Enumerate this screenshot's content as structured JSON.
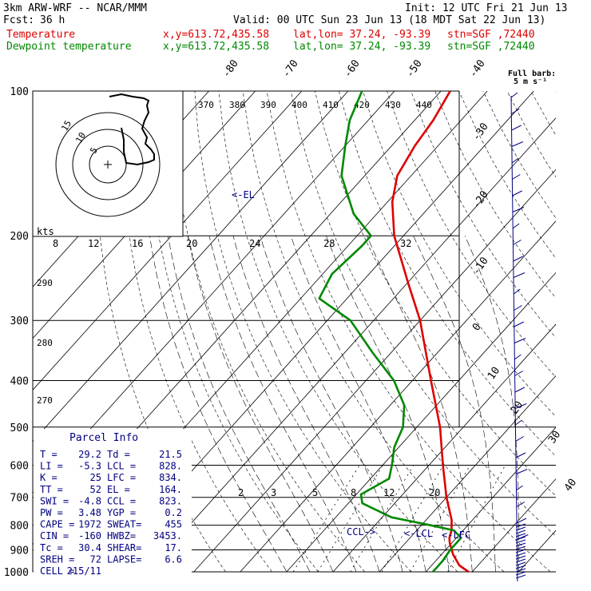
{
  "header": {
    "model": "3km ARW-WRF -- NCAR/MMM",
    "init": "Init: 12 UTC Fri 21 Jun 13",
    "fcst_label": "Fcst:",
    "fcst_value": "36 h",
    "valid": "Valid: 00 UTC Sun 23 Jun 13 (18 MDT Sat 22 Jun 13)",
    "temp_label": "Temperature",
    "dew_label": "Dewpoint temperature",
    "xy": "x,y=613.72,435.58",
    "latlon": "lat,lon= 37.24, -93.39",
    "stn": "stn=SGF ,72440",
    "barb_legend_1": "Full barb:",
    "barb_legend_2": "5 m s⁻¹"
  },
  "colors": {
    "temperature": "#dd0000",
    "dewpoint": "#008800",
    "parcel_text": "#000080",
    "wind_barb": "#000080",
    "isobar": "#000000"
  },
  "chart_data": {
    "type": "line",
    "subtype": "skew-t log-p",
    "pressure_levels": [
      100,
      200,
      300,
      400,
      500,
      600,
      700,
      800,
      900,
      1000
    ],
    "temperature_tick_labels": [
      "-80",
      "-70",
      "-60",
      "-50",
      "-40",
      "-30",
      "-20",
      "-10",
      "0",
      "10",
      "20",
      "30",
      "40"
    ],
    "theta_labels": [
      "370",
      "380",
      "390",
      "400",
      "410",
      "420",
      "430",
      "440"
    ],
    "theta_left_labels": [
      "290",
      "280",
      "270"
    ],
    "hodograph_speed_labels": [
      "8",
      "12",
      "16",
      "20",
      "24",
      "28",
      "32"
    ],
    "hodograph_unit": "kts",
    "hodograph_ring_labels": [
      "5",
      "10",
      "15"
    ],
    "mixing_ratio_labels": [
      "2",
      "3",
      "5",
      "8",
      "12",
      "20"
    ],
    "level_markers": [
      "EL",
      "CCL",
      "LCL",
      "LFC"
    ],
    "series": [
      {
        "name": "Temperature",
        "points": [
          [
            1000,
            29.2
          ],
          [
            970,
            26.0
          ],
          [
            920,
            22.5
          ],
          [
            870,
            19.5
          ],
          [
            850,
            18.5
          ],
          [
            820,
            17.5
          ],
          [
            780,
            15.5
          ],
          [
            700,
            10.0
          ],
          [
            600,
            3.0
          ],
          [
            500,
            -5.0
          ],
          [
            400,
            -16.0
          ],
          [
            300,
            -30.0
          ],
          [
            250,
            -40.0
          ],
          [
            200,
            -52.0
          ],
          [
            170,
            -59.0
          ],
          [
            150,
            -63.0
          ],
          [
            130,
            -65.0
          ],
          [
            115,
            -66.0
          ],
          [
            100,
            -68.0
          ]
        ]
      },
      {
        "name": "Dewpoint temperature",
        "points": [
          [
            1000,
            21.5
          ],
          [
            980,
            21.5
          ],
          [
            950,
            21.5
          ],
          [
            900,
            21.0
          ],
          [
            850,
            21.0
          ],
          [
            820,
            18.0
          ],
          [
            800,
            12.0
          ],
          [
            770,
            2.0
          ],
          [
            720,
            -7.0
          ],
          [
            690,
            -9.0
          ],
          [
            640,
            -6.0
          ],
          [
            600,
            -8.0
          ],
          [
            550,
            -11.0
          ],
          [
            500,
            -13.0
          ],
          [
            450,
            -17.0
          ],
          [
            400,
            -24.0
          ],
          [
            350,
            -34.0
          ],
          [
            300,
            -45.0
          ],
          [
            270,
            -56.0
          ],
          [
            240,
            -58.0
          ],
          [
            210,
            -57.0
          ],
          [
            200,
            -57.0
          ],
          [
            180,
            -65.0
          ],
          [
            150,
            -75.0
          ],
          [
            130,
            -80.0
          ],
          [
            115,
            -84.0
          ],
          [
            100,
            -87.0
          ]
        ]
      }
    ]
  },
  "parcel": {
    "title": "Parcel Info",
    "rows": [
      {
        "k1": "T  =",
        "v1": "29.2",
        "k2": "Td =",
        "v2": "21.5"
      },
      {
        "k1": "LI =",
        "v1": "-5.3",
        "k2": "LCL =",
        "v2": "828."
      },
      {
        "k1": "K  =",
        "v1": "25",
        "k2": "LFC =",
        "v2": "834."
      },
      {
        "k1": "TT =",
        "v1": "52",
        "k2": "EL =",
        "v2": "164."
      },
      {
        "k1": "SWI =",
        "v1": "-4.8",
        "k2": "CCL =",
        "v2": "823."
      },
      {
        "k1": "PW =",
        "v1": "3.48",
        "k2": "YGP =",
        "v2": "0.2"
      },
      {
        "k1": "CAPE =",
        "v1": "1972",
        "k2": "SWEAT=",
        "v2": "455"
      },
      {
        "k1": "CIN =",
        "v1": "-160",
        "k2": "HWBZ=",
        "v2": "3453."
      },
      {
        "k1": "Tc =",
        "v1": "30.4",
        "k2": "SHEAR=",
        "v2": "17."
      },
      {
        "k1": "SREH =",
        "v1": "72",
        "k2": "LAPSE=",
        "v2": "6.6"
      },
      {
        "k1": "CELL =",
        "v1": "215/11",
        "k2": "",
        "v2": ""
      }
    ]
  }
}
